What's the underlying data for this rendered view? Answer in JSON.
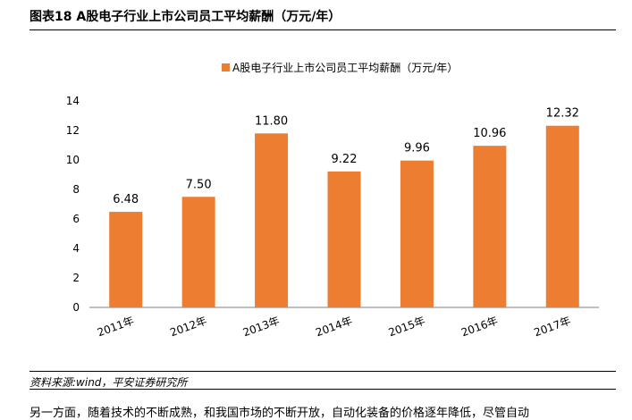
{
  "figure": {
    "title": "图表18    A股电子行业上市公司员工平均薪酬（万元/年）",
    "source": "资料来源:wind，平安证券研究所",
    "next_paragraph": "另一方面，随着技术的不断成熟，和我国市场的不断开放，自动化装备的价格逐年降低，尽管自动"
  },
  "colors": {
    "bar": "#ED7D31",
    "text": "#000000",
    "axis": "#7F7F7F"
  },
  "chart_data": {
    "type": "bar",
    "title": "",
    "xlabel": "",
    "ylabel": "",
    "legend_position": "top",
    "ylim": [
      0,
      14
    ],
    "yticks": [
      0,
      2,
      4,
      6,
      8,
      10,
      12,
      14
    ],
    "categories": [
      "2011年",
      "2012年",
      "2013年",
      "2014年",
      "2015年",
      "2016年",
      "2017年"
    ],
    "series": [
      {
        "name": "A股电子行业上市公司员工平均薪酬（万元/年）",
        "values": [
          6.48,
          7.5,
          11.8,
          9.22,
          9.96,
          10.96,
          12.32
        ],
        "labels": [
          "6.48",
          "7.50",
          "11.80",
          "9.22",
          "9.96",
          "10.96",
          "12.32"
        ]
      }
    ]
  }
}
